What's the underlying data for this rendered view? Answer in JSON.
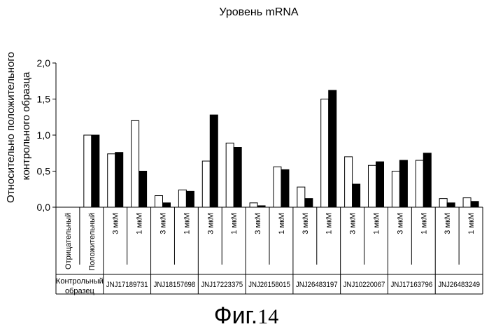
{
  "chart_data": {
    "type": "bar",
    "title": "Уровень mRNA",
    "ylabel_lines": [
      "Относительно положительного",
      "контрольного образца"
    ],
    "ylim": [
      0,
      2
    ],
    "yticks": [
      "0,0",
      "0,5",
      "1,0",
      "1,5",
      "2,0"
    ],
    "ytick_values": [
      0,
      0.5,
      1,
      1.5,
      2
    ],
    "bar_colors": [
      "#ffffff",
      "#000000"
    ],
    "groups": [
      {
        "label": "Контрольный образец",
        "label_lines": [
          "Контрольный",
          "образец"
        ],
        "sub": [
          {
            "label": "Отрицательный",
            "values": [
              0,
              0
            ]
          },
          {
            "label": "Положительный",
            "values": [
              1.0,
              1.0
            ]
          }
        ]
      },
      {
        "label": "JNJ17189731",
        "sub": [
          {
            "label": "3 мкМ",
            "values": [
              0.74,
              0.76
            ]
          },
          {
            "label": "1 мкМ",
            "values": [
              1.2,
              0.5
            ]
          }
        ]
      },
      {
        "label": "JNJ18157698",
        "sub": [
          {
            "label": "3 мкМ",
            "values": [
              0.16,
              0.06
            ]
          },
          {
            "label": "1 мкМ",
            "values": [
              0.24,
              0.22
            ]
          }
        ]
      },
      {
        "label": "JNJ17223375",
        "sub": [
          {
            "label": "3 мкМ",
            "values": [
              0.64,
              1.28
            ]
          },
          {
            "label": "1 мкМ",
            "values": [
              0.89,
              0.83
            ]
          }
        ]
      },
      {
        "label": "JNJ26158015",
        "sub": [
          {
            "label": "3 мкМ",
            "values": [
              0.06,
              0.02
            ]
          },
          {
            "label": "1 мкМ",
            "values": [
              0.56,
              0.52
            ]
          }
        ]
      },
      {
        "label": "JNJ26483197",
        "sub": [
          {
            "label": "3 мкМ",
            "values": [
              0.28,
              0.12
            ]
          },
          {
            "label": "1 мкМ",
            "values": [
              1.5,
              1.62
            ]
          }
        ]
      },
      {
        "label": "JNJ10220067",
        "sub": [
          {
            "label": "3 мкМ",
            "values": [
              0.7,
              0.32
            ]
          },
          {
            "label": "1 мкМ",
            "values": [
              0.58,
              0.63
            ]
          }
        ]
      },
      {
        "label": "JNJ17163796",
        "sub": [
          {
            "label": "3 мкМ",
            "values": [
              0.5,
              0.65
            ]
          },
          {
            "label": "1 мкМ",
            "values": [
              0.65,
              0.75
            ]
          }
        ]
      },
      {
        "label": "JNJ26483249",
        "sub": [
          {
            "label": "3 мкМ",
            "values": [
              0.12,
              0.06
            ]
          },
          {
            "label": "1 мкМ",
            "values": [
              0.13,
              0.08
            ]
          }
        ]
      }
    ]
  },
  "caption": {
    "main": "Фиг.",
    "number": "14"
  }
}
